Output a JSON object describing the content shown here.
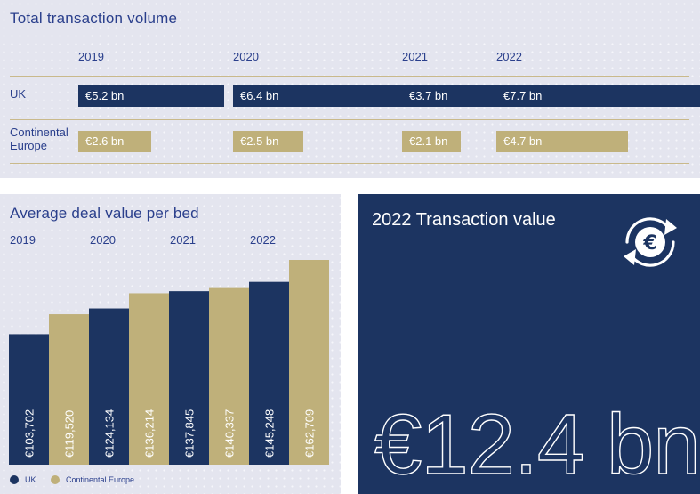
{
  "top_panel": {
    "title": "Total transaction volume"
  },
  "bottom_panel": {
    "title": "Average deal value per bed"
  },
  "kpi": {
    "title": "2022 Transaction value",
    "value": "€12.4 bn",
    "icon": "euro-exchange-icon"
  },
  "colors": {
    "uk": "#1c3461",
    "continental_europe": "#bfb07a",
    "panel_bg": "#e4e5ef",
    "text": "#2a3f8c"
  },
  "chart_data": [
    {
      "type": "bar",
      "orientation": "horizontal",
      "title": "Total transaction volume",
      "categories": [
        "2019",
        "2020",
        "2021",
        "2022"
      ],
      "series": [
        {
          "name": "UK",
          "values": [
            5.2,
            6.4,
            3.7,
            7.7
          ],
          "labels": [
            "€5.2 bn",
            "€6.4 bn",
            "€3.7 bn",
            "€7.7 bn"
          ]
        },
        {
          "name": "Continental Europe",
          "values": [
            2.6,
            2.5,
            2.1,
            4.7
          ],
          "labels": [
            "€2.6 bn",
            "€2.5 bn",
            "€2.1 bn",
            "€4.7 bn"
          ]
        }
      ],
      "grid": false
    },
    {
      "type": "bar",
      "orientation": "vertical",
      "title": "Average deal value per bed",
      "categories": [
        "2019",
        "2020",
        "2021",
        "2022"
      ],
      "series": [
        {
          "name": "UK",
          "values": [
            103702,
            124134,
            137845,
            145248
          ],
          "labels": [
            "€103,702",
            "€124,134",
            "€137,845",
            "€145,248"
          ]
        },
        {
          "name": "Continental Europe",
          "values": [
            119520,
            136214,
            140337,
            162709
          ],
          "labels": [
            "€119,520",
            "€136,214",
            "€140,337",
            "€162,709"
          ]
        }
      ],
      "legend": [
        "UK",
        "Continental Europe"
      ],
      "legend_position": "bottom-left",
      "grid": false
    }
  ]
}
